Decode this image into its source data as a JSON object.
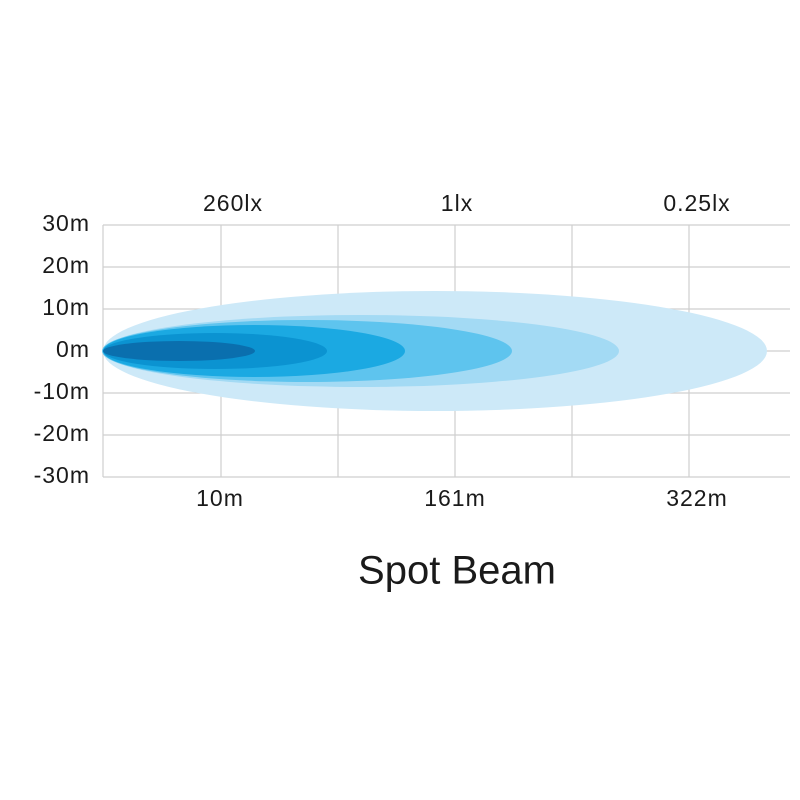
{
  "title": "Spot Beam",
  "top_labels": [
    "260lx",
    "1lx",
    "0.25lx"
  ],
  "y_labels": [
    "30m",
    "20m",
    "10m",
    "0m",
    "-10m",
    "-20m",
    "-30m"
  ],
  "bottom_labels": [
    "10m",
    "161m",
    "322m"
  ]
}
